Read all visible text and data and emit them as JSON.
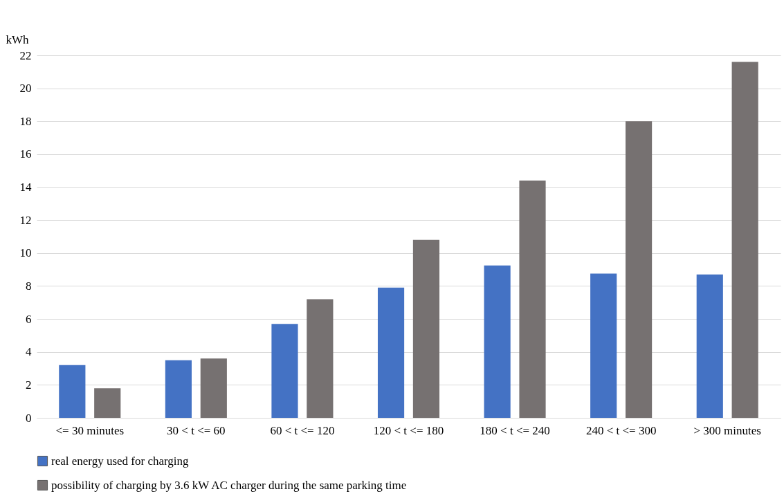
{
  "chart_data": {
    "type": "bar",
    "ylabel": "kWh",
    "categories": [
      "<= 30 minutes",
      "30 < t <= 60",
      "60 < t <= 120",
      "120 < t <= 180",
      "180 < t <= 240",
      "240 < t <= 300",
      "> 300 minutes"
    ],
    "series": [
      {
        "name": "real energy used for charging",
        "color": "#4472c4",
        "values": [
          3.2,
          3.5,
          5.7,
          7.9,
          9.25,
          8.75,
          8.7
        ]
      },
      {
        "name": "possibility of charging by 3.6 kW AC charger during the same parking time",
        "color": "#767171",
        "values": [
          1.8,
          3.6,
          7.2,
          10.8,
          14.4,
          18.0,
          21.6
        ]
      }
    ],
    "ylim": [
      0,
      22
    ],
    "yticks": [
      0,
      2,
      4,
      6,
      8,
      10,
      12,
      14,
      16,
      18,
      20,
      22
    ],
    "grid": "y",
    "legend": "bottom"
  }
}
